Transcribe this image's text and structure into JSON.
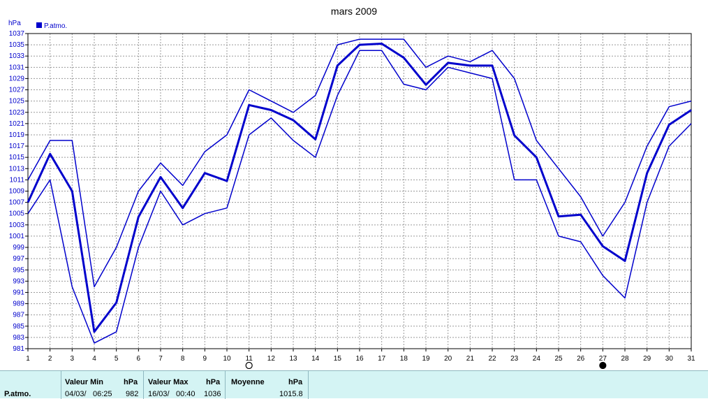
{
  "chart_data": {
    "type": "line",
    "title": "mars 2009",
    "ylabel": "hPa",
    "legend": "P.atmo.",
    "legend_placement": "top-left",
    "grid": true,
    "ylim": [
      981,
      1037
    ],
    "yticks": [
      981,
      983,
      985,
      987,
      989,
      991,
      993,
      995,
      997,
      999,
      1001,
      1003,
      1005,
      1007,
      1009,
      1011,
      1013,
      1015,
      1017,
      1019,
      1021,
      1023,
      1025,
      1027,
      1029,
      1031,
      1033,
      1035,
      1037
    ],
    "x": [
      1,
      2,
      3,
      4,
      5,
      6,
      7,
      8,
      9,
      10,
      11,
      12,
      13,
      14,
      15,
      16,
      17,
      18,
      19,
      20,
      21,
      22,
      23,
      24,
      25,
      26,
      27,
      28,
      29,
      30,
      31
    ],
    "series": [
      {
        "role": "max",
        "values": [
          1011,
          1018,
          1018,
          992,
          999,
          1009,
          1014,
          1010,
          1016,
          1019,
          1027,
          1025,
          1023,
          1026,
          1035,
          1036,
          1036,
          1036,
          1031,
          1033,
          1032,
          1034,
          1029,
          1018,
          1013,
          1008,
          1001,
          1007,
          1017,
          1024,
          1025
        ]
      },
      {
        "role": "mean",
        "values": [
          1007,
          1015.6,
          1009,
          984,
          989.2,
          1004.4,
          1011.5,
          1006,
          1012.2,
          1010.8,
          1024.3,
          1023.4,
          1021.6,
          1018.2,
          1031.3,
          1035,
          1035.2,
          1032.7,
          1027.9,
          1031.8,
          1031.3,
          1031.3,
          1018.9,
          1015,
          1004.5,
          1004.8,
          999.2,
          996.6,
          1012.2,
          1020.8,
          1023.4
        ]
      },
      {
        "role": "min",
        "values": [
          1005,
          1011,
          992,
          982,
          984,
          999,
          1009,
          1003,
          1005,
          1006,
          1019,
          1022,
          1018,
          1015,
          1026,
          1034,
          1034,
          1028,
          1027,
          1031,
          1030,
          1029,
          1011,
          1011,
          1001,
          1000,
          994,
          990,
          1007,
          1017,
          1021
        ]
      }
    ],
    "moon_phases": [
      {
        "day": 11,
        "phase": "full"
      },
      {
        "day": 27,
        "phase": "new"
      }
    ],
    "colors": {
      "line": "#0000cc",
      "grid": "#999999",
      "axis_text": "#0000cc",
      "title": "#000000"
    }
  },
  "footer": {
    "row_label": "P.atmo.",
    "min": {
      "header": "Valeur Min",
      "unit": "hPa",
      "date": "04/03/",
      "time": "06:25",
      "value": "982"
    },
    "max": {
      "header": "Valeur Max",
      "unit": "hPa",
      "date": "16/03/",
      "time": "00:40",
      "value": "1036"
    },
    "avg": {
      "header": "Moyenne",
      "unit": "hPa",
      "value": "1015.8"
    },
    "background": "#d4f4f4"
  }
}
